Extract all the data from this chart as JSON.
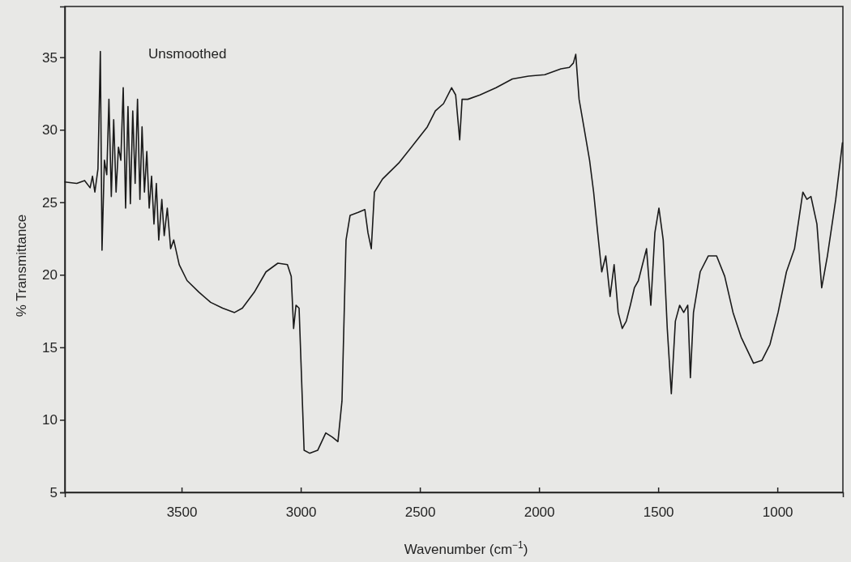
{
  "chart_data": {
    "type": "line",
    "xlabel": "Wavenumber (cm$^{−1}$)",
    "ylabel": "% Transmittance",
    "annotations": [
      "Unsmoothed"
    ],
    "xlim": [
      3990,
      725
    ],
    "xticks": [
      3500,
      3000,
      2500,
      2000,
      1500,
      1000
    ],
    "ylim": [
      5,
      38.5
    ],
    "yticks": [
      5,
      10,
      15,
      20,
      25,
      30,
      35
    ],
    "grid": false,
    "marker": "none",
    "line_style": "solid",
    "series": [
      {
        "color": "#1a1a1a",
        "x": [
          3990,
          3940,
          3907,
          3884,
          3874,
          3864,
          3851,
          3841,
          3834,
          3824,
          3814,
          3805,
          3795,
          3785,
          3775,
          3765,
          3755,
          3745,
          3735,
          3725,
          3715,
          3705,
          3695,
          3685,
          3675,
          3666,
          3656,
          3646,
          3636,
          3626,
          3616,
          3606,
          3596,
          3583,
          3573,
          3560,
          3546,
          3533,
          3510,
          3477,
          3427,
          3378,
          3328,
          3278,
          3245,
          3195,
          3146,
          3096,
          3056,
          3040,
          3030,
          3020,
          3007,
          2986,
          2963,
          2929,
          2895,
          2867,
          2844,
          2827,
          2810,
          2793,
          2759,
          2731,
          2718,
          2704,
          2691,
          2657,
          2589,
          2521,
          2469,
          2435,
          2401,
          2367,
          2350,
          2333,
          2323,
          2299,
          2248,
          2180,
          2112,
          2044,
          1976,
          1908,
          1873,
          1856,
          1846,
          1832,
          1812,
          1788,
          1771,
          1754,
          1737,
          1720,
          1702,
          1685,
          1668,
          1651,
          1634,
          1617,
          1600,
          1583,
          1566,
          1549,
          1531,
          1514,
          1497,
          1479,
          1462,
          1445,
          1428,
          1410,
          1393,
          1376,
          1365,
          1352,
          1324,
          1290,
          1255,
          1221,
          1186,
          1152,
          1100,
          1065,
          1031,
          997,
          962,
          928,
          893,
          876,
          859,
          834,
          814,
          790,
          755,
          727
        ],
        "values": [
          26.4,
          26.3,
          26.5,
          26.0,
          26.8,
          25.7,
          27.3,
          35.4,
          21.7,
          27.9,
          26.9,
          32.1,
          25.4,
          30.7,
          25.7,
          28.8,
          27.9,
          32.9,
          24.6,
          31.6,
          24.9,
          31.3,
          26.3,
          32.1,
          25.2,
          30.2,
          25.7,
          28.5,
          24.6,
          26.8,
          23.5,
          26.3,
          22.4,
          25.2,
          22.7,
          24.6,
          21.8,
          22.4,
          20.7,
          19.6,
          18.8,
          18.1,
          17.7,
          17.4,
          17.7,
          18.8,
          20.2,
          20.8,
          20.7,
          19.9,
          16.3,
          17.9,
          17.7,
          7.9,
          7.7,
          7.9,
          9.1,
          8.8,
          8.5,
          11.3,
          22.4,
          24.1,
          24.3,
          24.5,
          22.9,
          21.8,
          25.7,
          26.6,
          27.7,
          29.1,
          30.2,
          31.3,
          31.8,
          32.9,
          32.4,
          29.3,
          32.1,
          32.1,
          32.4,
          32.9,
          33.5,
          33.7,
          33.8,
          34.2,
          34.3,
          34.6,
          35.2,
          32.1,
          30.2,
          27.9,
          25.7,
          22.9,
          20.2,
          21.3,
          18.5,
          20.7,
          17.4,
          16.3,
          16.8,
          17.9,
          19.1,
          19.6,
          20.7,
          21.8,
          17.9,
          22.9,
          24.6,
          22.4,
          16.3,
          11.8,
          16.8,
          17.9,
          17.4,
          17.9,
          12.9,
          17.4,
          20.2,
          21.3,
          21.3,
          19.9,
          17.4,
          15.7,
          13.9,
          14.1,
          15.2,
          17.4,
          20.2,
          21.8,
          25.7,
          25.2,
          25.4,
          23.5,
          19.1,
          21.3,
          25.2,
          29.1
        ]
      }
    ]
  }
}
